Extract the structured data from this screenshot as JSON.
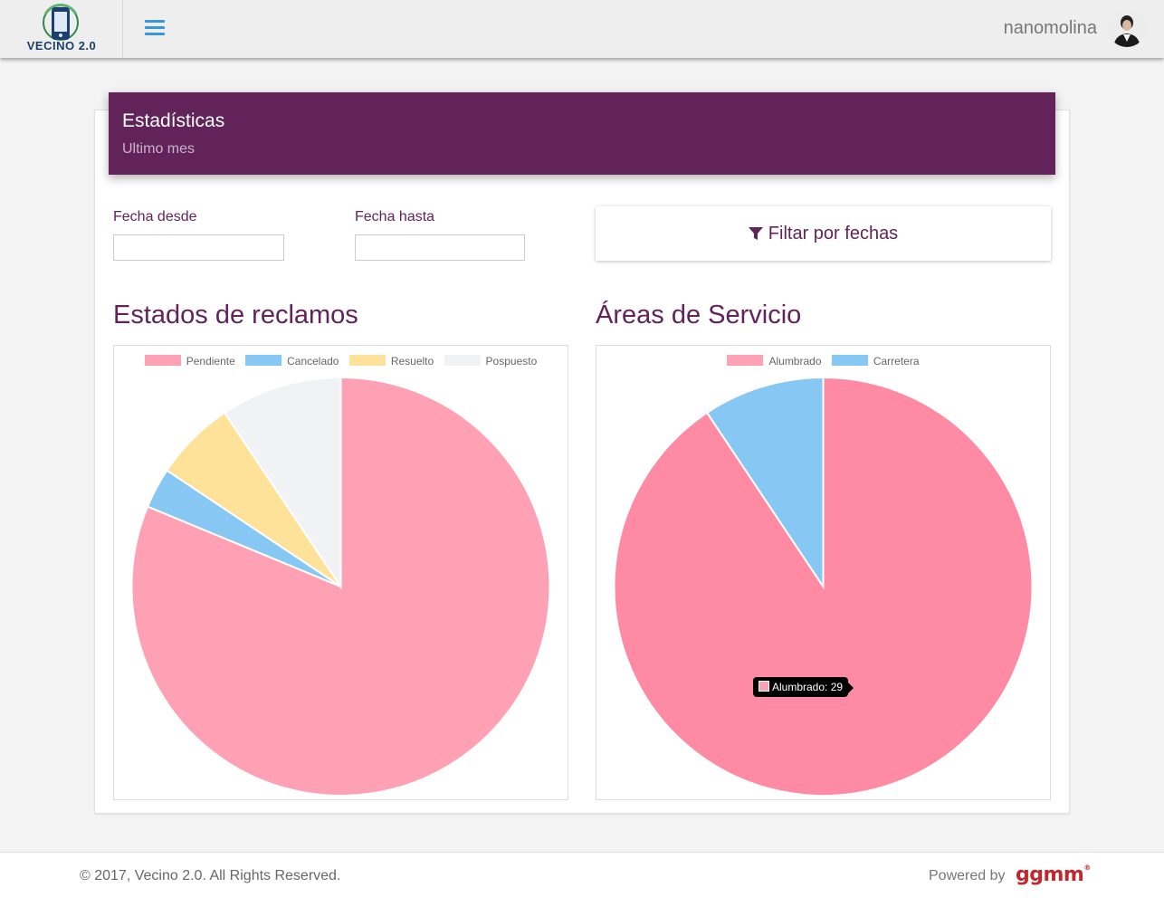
{
  "header": {
    "logo_text": "VECINO 2.0",
    "username": "nanomolina",
    "menu_icon": "bars-icon"
  },
  "panel": {
    "title": "Estadísticas",
    "subtitle": "Ultimo mes"
  },
  "filters": {
    "from_label": "Fecha desde",
    "to_label": "Fecha hasta",
    "from_value": "",
    "to_value": "",
    "button_label": "Filtar por fechas",
    "button_icon": "filter-icon"
  },
  "colors": {
    "brand": "#62235b",
    "accent": "#3498db",
    "pink": "#ffa1b5",
    "blue": "#86c7f3",
    "yellow": "#ffe29a",
    "grey": "#f1f2f4"
  },
  "chart_data": [
    {
      "type": "pie",
      "title": "Estados de reclamos",
      "categories": [
        "Pendiente",
        "Cancelado",
        "Resuelto",
        "Pospuesto"
      ],
      "values": [
        26,
        1,
        2,
        3
      ],
      "colors": [
        "#ffa1b5",
        "#86c7f3",
        "#ffe29a",
        "#f1f2f4"
      ],
      "legend": "top"
    },
    {
      "type": "pie",
      "title": "Áreas de Servicio",
      "categories": [
        "Alumbrado",
        "Carretera"
      ],
      "values": [
        29,
        3
      ],
      "colors": [
        "#ffa1b5",
        "#86c7f3"
      ],
      "legend": "top",
      "tooltip": "Alumbrado: 29"
    }
  ],
  "footer": {
    "copyright": "© 2017, Vecino 2.0. All Rights Reserved.",
    "powered_by": "Powered by",
    "brand": "ggmm"
  }
}
